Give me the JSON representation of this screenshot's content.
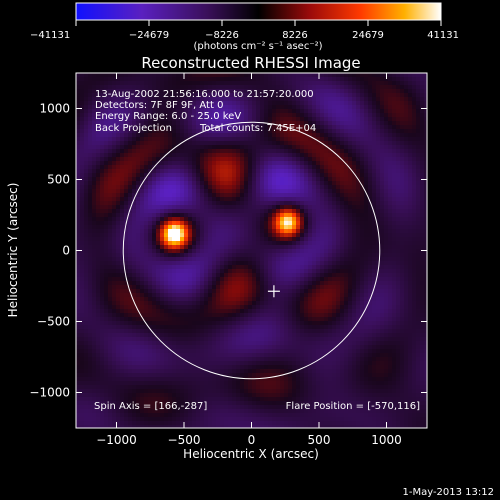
{
  "chart_data": {
    "type": "heatmap",
    "title": "Reconstructed RHESSI Image",
    "xlabel": "Heliocentric X (arcsec)",
    "ylabel": "Heliocentric Y (arcsec)",
    "xlim": [
      -1300,
      1300
    ],
    "ylim": [
      -1250,
      1250
    ],
    "xticks": [
      -1000,
      -500,
      0,
      500,
      1000
    ],
    "yticks": [
      1000,
      500,
      0,
      -500,
      -1000
    ],
    "xtick_labels": [
      "−1000",
      "−500",
      "0",
      "500",
      "1000"
    ],
    "ytick_labels": [
      "1000",
      "500",
      "0",
      "−500",
      "−1000"
    ],
    "colorbar": {
      "min": -41131,
      "max": 41131,
      "ticks": [
        -41131,
        -24679,
        -8226,
        8226,
        24679,
        41131
      ],
      "tick_labels": [
        "−41131",
        "−24679",
        "−8226",
        "8226",
        "24679",
        "41131"
      ],
      "unit_label": "(photons cm⁻² s⁻¹ asec⁻²)",
      "colormap": [
        "#1010ff",
        "#5a20c0",
        "#3a0f5a",
        "#000000",
        "#9a0a0a",
        "#ff3a00",
        "#ffb000",
        "#ffffff"
      ]
    },
    "annotations": {
      "time_range": "13-Aug-2002 21:56:16.000 to 21:57:20.000",
      "detectors": "Detectors: 7F 8F 9F, Att 0",
      "energy_range": "Energy Range: 6.0 - 25.0 keV",
      "method": "Back Projection",
      "total_counts": "Total counts: 7.45E+04",
      "spin_axis": "Spin Axis = [166,-287]",
      "flare_position": "Flare Position = [-570,116]"
    },
    "sources": [
      {
        "x": -570,
        "y": 116,
        "peak": 41131
      },
      {
        "x": 270,
        "y": 200,
        "peak": 36000
      }
    ],
    "solar_limb_radius_arcsec": 950,
    "spin_axis_marker": {
      "x": 166,
      "y": -287
    },
    "footer_date": "1-May-2013 13:12"
  }
}
